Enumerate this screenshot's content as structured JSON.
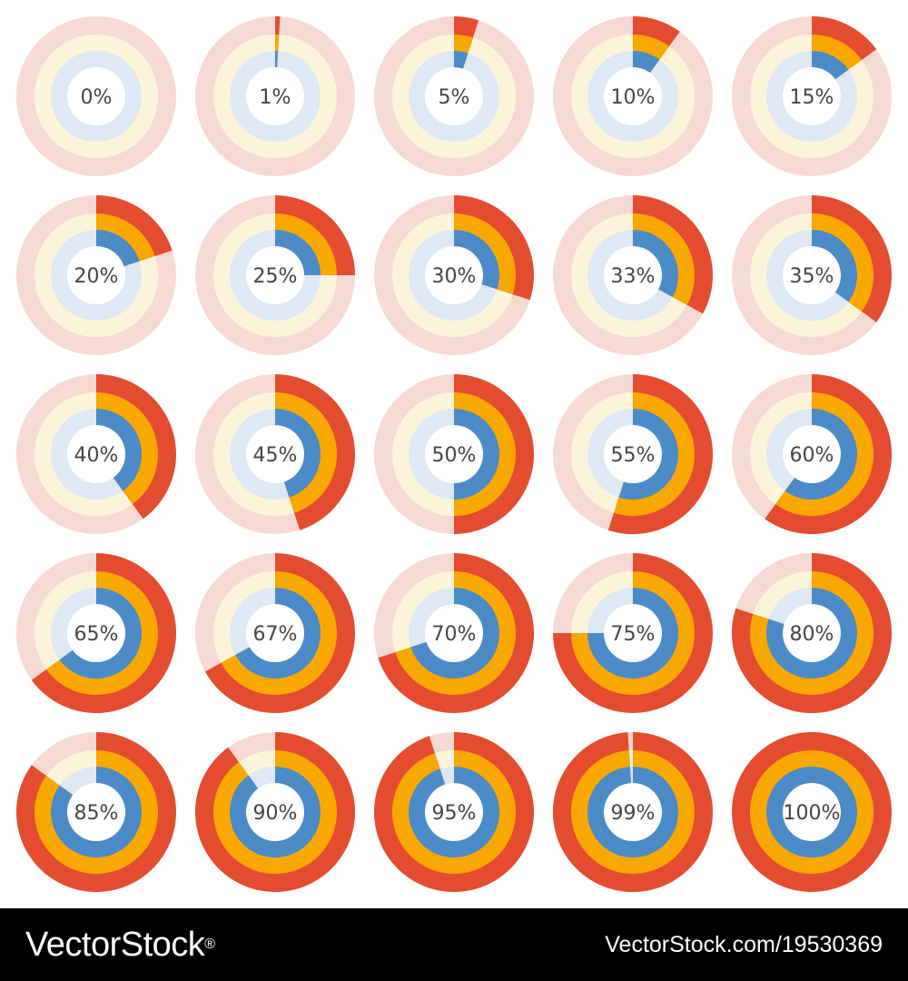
{
  "chart_data": {
    "type": "pie",
    "rings": [
      "outer",
      "middle",
      "inner"
    ],
    "colors": {
      "outer": "#e44c30",
      "middle": "#f9a800",
      "inner": "#4a8bc8",
      "outer_faded": "#f7d9d4",
      "middle_faded": "#fcf4d9",
      "inner_faded": "#dde8f4",
      "center": "#ffffff"
    },
    "values": [
      0,
      1,
      5,
      10,
      15,
      20,
      25,
      30,
      33,
      35,
      40,
      45,
      50,
      55,
      60,
      65,
      67,
      70,
      75,
      80,
      85,
      90,
      95,
      99,
      100
    ],
    "labels": [
      "0%",
      "1%",
      "5%",
      "10%",
      "15%",
      "20%",
      "25%",
      "30%",
      "33%",
      "35%",
      "40%",
      "45%",
      "50%",
      "55%",
      "60%",
      "65%",
      "67%",
      "70%",
      "75%",
      "80%",
      "85%",
      "90%",
      "95%",
      "99%",
      "100%"
    ]
  },
  "footer": {
    "brand": "VectorStock",
    "brand_mark": "®",
    "stock_id": "VectorStock.com/19530369"
  }
}
